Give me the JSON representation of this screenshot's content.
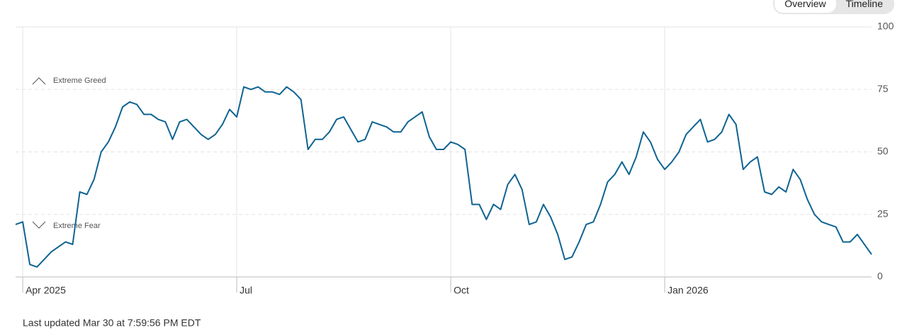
{
  "chart_data": {
    "type": "line",
    "categories": [
      null,
      "Apr 2025",
      null,
      null,
      null,
      null,
      null,
      null,
      null,
      null,
      null,
      null,
      null,
      null,
      null,
      null,
      null,
      null,
      null,
      null,
      null,
      null,
      null,
      null,
      null,
      null,
      null,
      null,
      null,
      null,
      null,
      "Jul",
      null,
      null,
      null,
      null,
      null,
      null,
      null,
      null,
      null,
      null,
      null,
      null,
      null,
      null,
      null,
      null,
      null,
      null,
      null,
      null,
      null,
      null,
      null,
      null,
      null,
      null,
      null,
      null,
      null,
      "Oct",
      null,
      null,
      null,
      null,
      null,
      null,
      null,
      null,
      null,
      null,
      null,
      null,
      null,
      null,
      null,
      null,
      null,
      null,
      null,
      null,
      null,
      null,
      null,
      null,
      null,
      null,
      null,
      null,
      null,
      "Jan 2026",
      null,
      null,
      null,
      null,
      null,
      null,
      null,
      null,
      null,
      null,
      null,
      null,
      null,
      null,
      null,
      null,
      null,
      null,
      null,
      null,
      null,
      null,
      null,
      null,
      null,
      null,
      null,
      null,
      null
    ],
    "series": [
      {
        "color": "#0f6392",
        "values": [
          21,
          22,
          5,
          4,
          7,
          10,
          12,
          14,
          13,
          34,
          33,
          39,
          50,
          54,
          60,
          68,
          70,
          69,
          65,
          65,
          63,
          62,
          55,
          62,
          63,
          60,
          57,
          55,
          57,
          61,
          67,
          64,
          76,
          75,
          76,
          74,
          74,
          73,
          76,
          74,
          71,
          51,
          55,
          55,
          58,
          63,
          64,
          59,
          54,
          55,
          62,
          61,
          60,
          58,
          58,
          62,
          64,
          66,
          56,
          51,
          51,
          54,
          53,
          51,
          29,
          29,
          23,
          29,
          27,
          37,
          41,
          35,
          21,
          22,
          29,
          24,
          17,
          7,
          8,
          14,
          21,
          22,
          29,
          38,
          41,
          46,
          41,
          48,
          58,
          54,
          47,
          43,
          46,
          50,
          57,
          60,
          63,
          54,
          55,
          58,
          65,
          61,
          43,
          46,
          48,
          34,
          33,
          36,
          34,
          43,
          39,
          31,
          25,
          22,
          21,
          20,
          14,
          14,
          17,
          13,
          9
        ]
      }
    ],
    "ylim": [
      0,
      100
    ],
    "yticks": [
      0,
      25,
      50,
      75,
      100
    ],
    "grid": true,
    "annotations": [
      "Extreme Greed",
      "Extreme Fear"
    ],
    "footnote": "Last updated Mar 30 at 7:59:56 PM EDT"
  },
  "tabs": [
    "Overview",
    "Timeline"
  ]
}
